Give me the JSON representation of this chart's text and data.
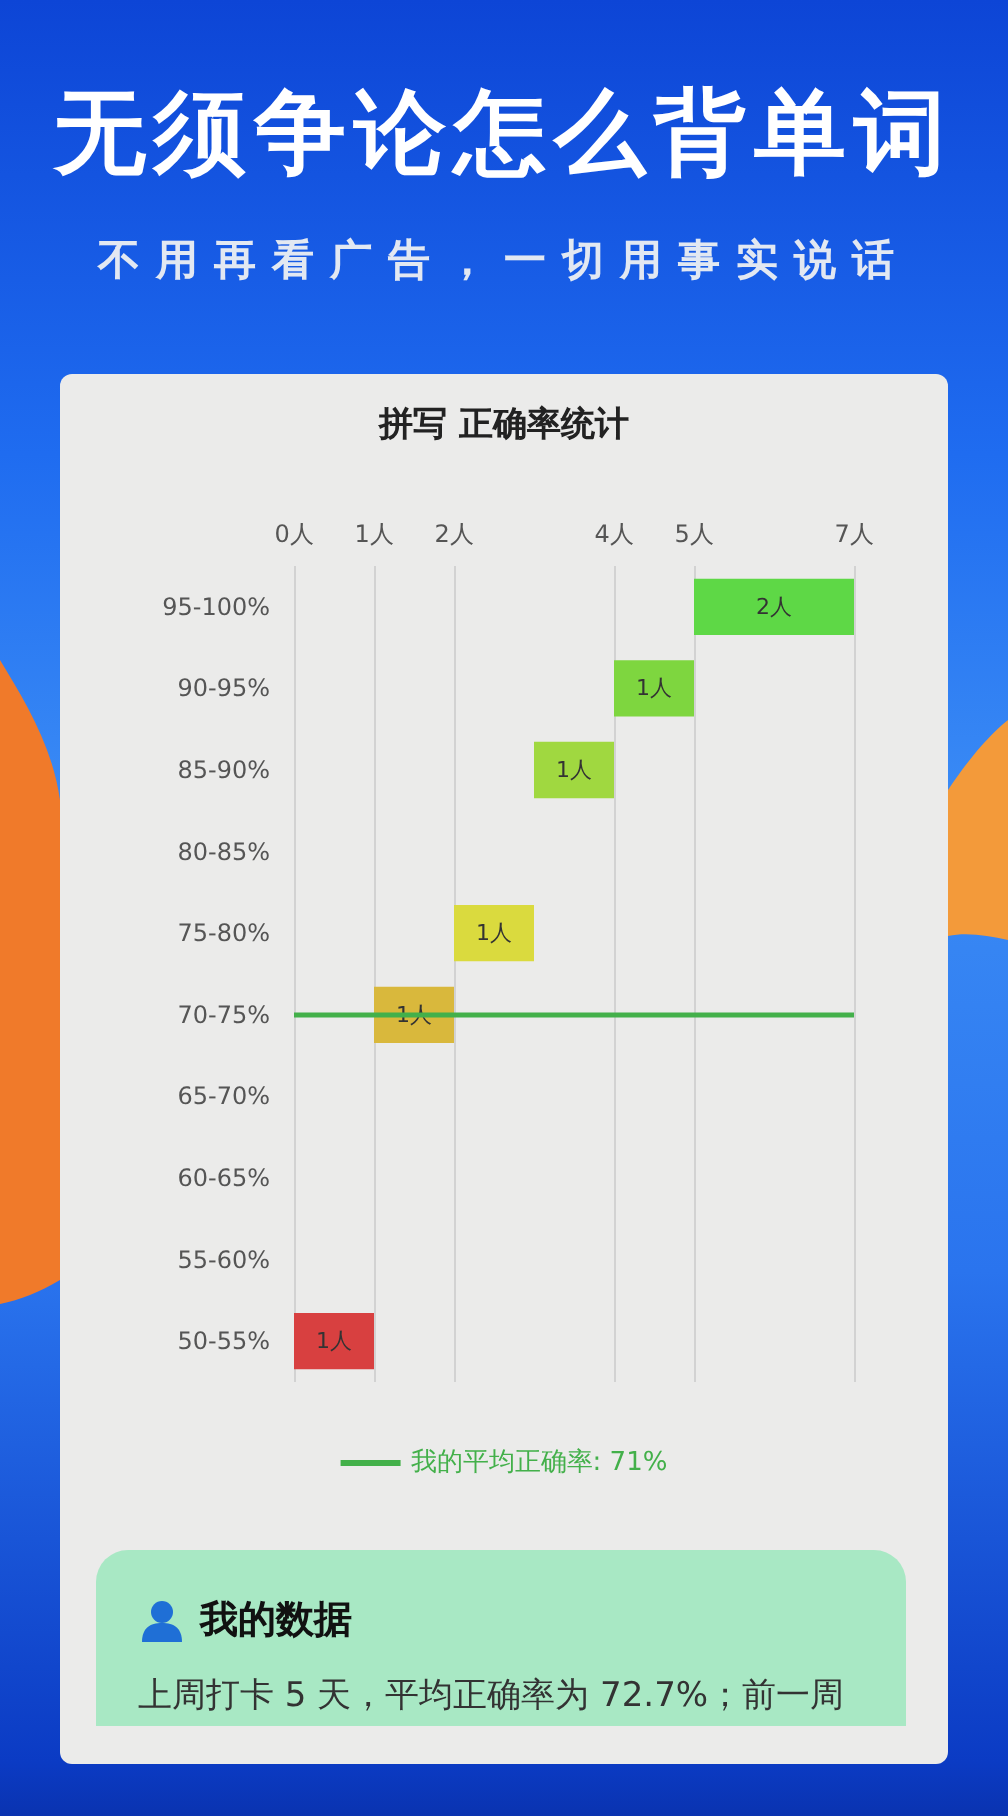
{
  "chart_data": {
    "type": "bar",
    "orientation": "horizontal",
    "title": "拼写 正确率统计",
    "categories": [
      "95-100%",
      "90-95%",
      "85-90%",
      "80-85%",
      "75-80%",
      "70-75%",
      "65-70%",
      "60-65%",
      "55-60%",
      "50-55%"
    ],
    "values": [
      2,
      1,
      1,
      null,
      1,
      1,
      null,
      null,
      null,
      1
    ],
    "base": [
      5,
      4,
      3,
      null,
      2,
      1,
      null,
      null,
      null,
      0
    ],
    "value_labels": [
      "2人",
      "1人",
      "1人",
      null,
      "1人",
      "1人",
      null,
      null,
      null,
      "1人"
    ],
    "colors": [
      "#5ed846",
      "#7ed63f",
      "#a0d840",
      null,
      "#dada3e",
      "#d9b83c",
      null,
      null,
      null,
      "#d84040"
    ],
    "xlim": [
      0,
      7
    ],
    "xticks": [
      {
        "value": 0,
        "label": "0人"
      },
      {
        "value": 1,
        "label": "1人"
      },
      {
        "value": 2,
        "label": "2人"
      },
      {
        "value": 4,
        "label": "4人"
      },
      {
        "value": 5,
        "label": "5人"
      },
      {
        "value": 7,
        "label": "7人"
      }
    ],
    "grid": "x",
    "legend": "bottom",
    "ref_lines": [
      {
        "axis": "y",
        "value": "70-75%",
        "label": "我的平均正确率: 71%",
        "color": "#43b04a"
      }
    ],
    "annotations": [
      "无须争论怎么背单词",
      "不用再看广告，一切用事实说话",
      "我的数据",
      "上周打卡 5 天，平均正确率为 72.7%；前一周"
    ]
  }
}
